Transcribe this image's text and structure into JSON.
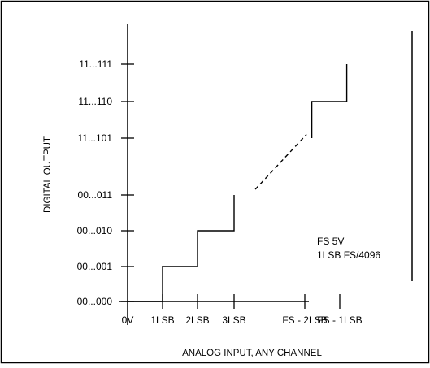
{
  "chart_data": {
    "type": "line",
    "xlabel": "ANALOG INPUT, ANY CHANNEL",
    "ylabel": "DIGITAL OUTPUT",
    "x_ticks": [
      "0V",
      "1LSB",
      "2LSB",
      "3LSB",
      "FS - 2LSB",
      "FS - 1LSB"
    ],
    "y_ticks": [
      "00...000",
      "00...001",
      "00...010",
      "00...011",
      "11...101",
      "11...110",
      "11...111"
    ],
    "annotations": [
      "FS   5V",
      "1LSB   FS/4096"
    ],
    "series": [
      {
        "style": "solid",
        "points": [
          [
            0,
            0
          ],
          [
            1,
            0
          ],
          [
            1,
            1
          ],
          [
            2,
            1
          ],
          [
            2,
            2
          ],
          [
            3,
            2
          ],
          [
            3,
            3
          ]
        ]
      },
      {
        "style": "dashed",
        "points": [
          [
            3.3,
            3.1
          ],
          [
            4.05,
            4.1
          ]
        ]
      },
      {
        "style": "solid",
        "points": [
          [
            4.2,
            4
          ],
          [
            4.2,
            5
          ],
          [
            5.2,
            5
          ],
          [
            5.2,
            6
          ]
        ]
      }
    ]
  }
}
